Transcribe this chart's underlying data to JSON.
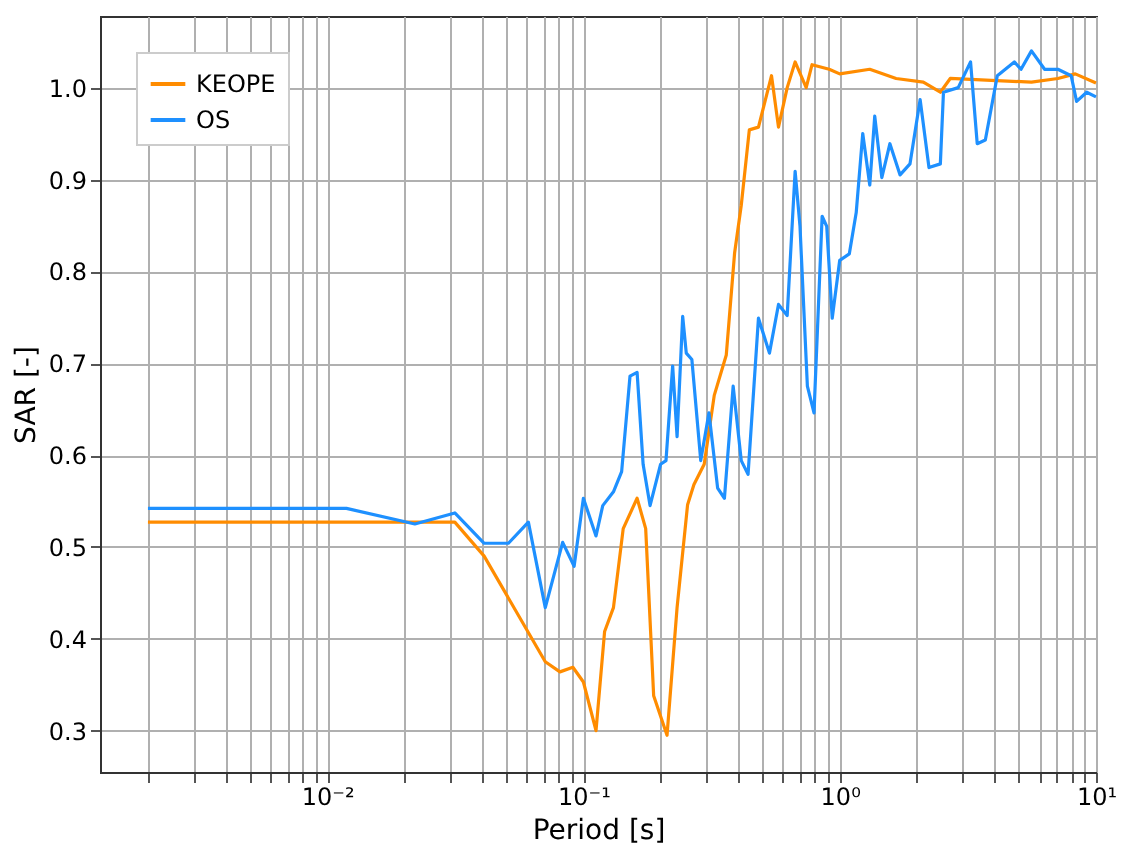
{
  "chart_data": {
    "type": "line",
    "xlabel": "Period [s]",
    "ylabel": "SAR [-]",
    "log": "x",
    "grid": true,
    "legend": "top left",
    "line_style": "solid",
    "marker": "none",
    "xlim": [
      0.0013,
      10
    ],
    "ylim": [
      0.255,
      1.078
    ],
    "xticks": [
      {
        "value": 0.002,
        "label": null
      },
      {
        "value": 0.003,
        "label": null
      },
      {
        "value": 0.004,
        "label": null
      },
      {
        "value": 0.005,
        "label": null
      },
      {
        "value": 0.006,
        "label": null
      },
      {
        "value": 0.007,
        "label": null
      },
      {
        "value": 0.008,
        "label": null
      },
      {
        "value": 0.009,
        "label": null
      },
      {
        "value": 0.01,
        "label": "10⁻²"
      },
      {
        "value": 0.02,
        "label": null
      },
      {
        "value": 0.03,
        "label": null
      },
      {
        "value": 0.04,
        "label": null
      },
      {
        "value": 0.05,
        "label": null
      },
      {
        "value": 0.06,
        "label": null
      },
      {
        "value": 0.07,
        "label": null
      },
      {
        "value": 0.08,
        "label": null
      },
      {
        "value": 0.09,
        "label": null
      },
      {
        "value": 0.1,
        "label": "10⁻¹"
      },
      {
        "value": 0.2,
        "label": null
      },
      {
        "value": 0.3,
        "label": null
      },
      {
        "value": 0.4,
        "label": null
      },
      {
        "value": 0.5,
        "label": null
      },
      {
        "value": 0.6,
        "label": null
      },
      {
        "value": 0.7,
        "label": null
      },
      {
        "value": 0.8,
        "label": null
      },
      {
        "value": 0.9,
        "label": null
      },
      {
        "value": 1,
        "label": "10⁰"
      },
      {
        "value": 2,
        "label": null
      },
      {
        "value": 3,
        "label": null
      },
      {
        "value": 4,
        "label": null
      },
      {
        "value": 5,
        "label": null
      },
      {
        "value": 6,
        "label": null
      },
      {
        "value": 7,
        "label": null
      },
      {
        "value": 8,
        "label": null
      },
      {
        "value": 9,
        "label": null
      },
      {
        "value": 10,
        "label": "10¹"
      }
    ],
    "yticks": [
      0.3,
      0.4,
      0.5,
      0.6,
      0.7,
      0.8,
      0.9,
      {
        "value": 1,
        "label": "1.0"
      }
    ],
    "series": [
      {
        "name": "KEOPE",
        "color": "#ff8c00",
        "x": [
          0.002,
          0.0315,
          0.041,
          0.071,
          0.081,
          0.091,
          0.1,
          0.112,
          0.121,
          0.131,
          0.143,
          0.162,
          0.175,
          0.188,
          0.212,
          0.232,
          0.255,
          0.27,
          0.296,
          0.324,
          0.361,
          0.389,
          0.413,
          0.444,
          0.482,
          0.542,
          0.577,
          0.624,
          0.67,
          0.74,
          0.78,
          0.91,
          1.0,
          1.31,
          1.66,
          2.12,
          2.47,
          2.7,
          3.9,
          5.6,
          7.1,
          8.3,
          10
        ],
        "values": [
          0.527,
          0.527,
          0.49,
          0.375,
          0.364,
          0.369,
          0.353,
          0.3,
          0.408,
          0.434,
          0.52,
          0.553,
          0.52,
          0.338,
          0.295,
          0.434,
          0.546,
          0.568,
          0.59,
          0.665,
          0.709,
          0.82,
          0.872,
          0.954,
          0.957,
          1.013,
          0.957,
          1.0,
          1.028,
          1.0,
          1.025,
          1.02,
          1.015,
          1.02,
          1.01,
          1.006,
          0.995,
          1.01,
          1.008,
          1.006,
          1.01,
          1.015,
          1.005
        ]
      },
      {
        "name": "OS",
        "color": "#1e90ff",
        "x": [
          0.002,
          0.0119,
          0.022,
          0.0315,
          0.041,
          0.051,
          0.061,
          0.071,
          0.083,
          0.092,
          0.1,
          0.112,
          0.119,
          0.131,
          0.141,
          0.152,
          0.162,
          0.171,
          0.182,
          0.2,
          0.21,
          0.223,
          0.232,
          0.244,
          0.252,
          0.265,
          0.287,
          0.309,
          0.334,
          0.355,
          0.384,
          0.413,
          0.439,
          0.482,
          0.532,
          0.577,
          0.624,
          0.67,
          0.7,
          0.748,
          0.794,
          0.854,
          0.89,
          0.935,
          1.0,
          1.09,
          1.16,
          1.23,
          1.31,
          1.37,
          1.46,
          1.57,
          1.72,
          1.88,
          2.06,
          2.23,
          2.47,
          2.54,
          2.9,
          3.24,
          3.44,
          3.7,
          4.12,
          4.8,
          5.1,
          5.6,
          6.3,
          7.1,
          8.0,
          8.4,
          9.2,
          10
        ],
        "values": [
          0.542,
          0.542,
          0.525,
          0.537,
          0.504,
          0.504,
          0.527,
          0.434,
          0.505,
          0.479,
          0.553,
          0.512,
          0.545,
          0.56,
          0.582,
          0.686,
          0.69,
          0.59,
          0.545,
          0.59,
          0.594,
          0.697,
          0.62,
          0.751,
          0.711,
          0.704,
          0.594,
          0.646,
          0.564,
          0.553,
          0.675,
          0.594,
          0.579,
          0.749,
          0.711,
          0.764,
          0.752,
          0.909,
          0.849,
          0.675,
          0.646,
          0.86,
          0.849,
          0.749,
          0.812,
          0.819,
          0.864,
          0.95,
          0.894,
          0.969,
          0.902,
          0.939,
          0.905,
          0.917,
          0.987,
          0.913,
          0.917,
          0.995,
          1.0,
          1.028,
          0.939,
          0.943,
          1.013,
          1.028,
          1.02,
          1.04,
          1.02,
          1.02,
          1.013,
          0.985,
          0.995,
          0.99
        ]
      }
    ]
  }
}
